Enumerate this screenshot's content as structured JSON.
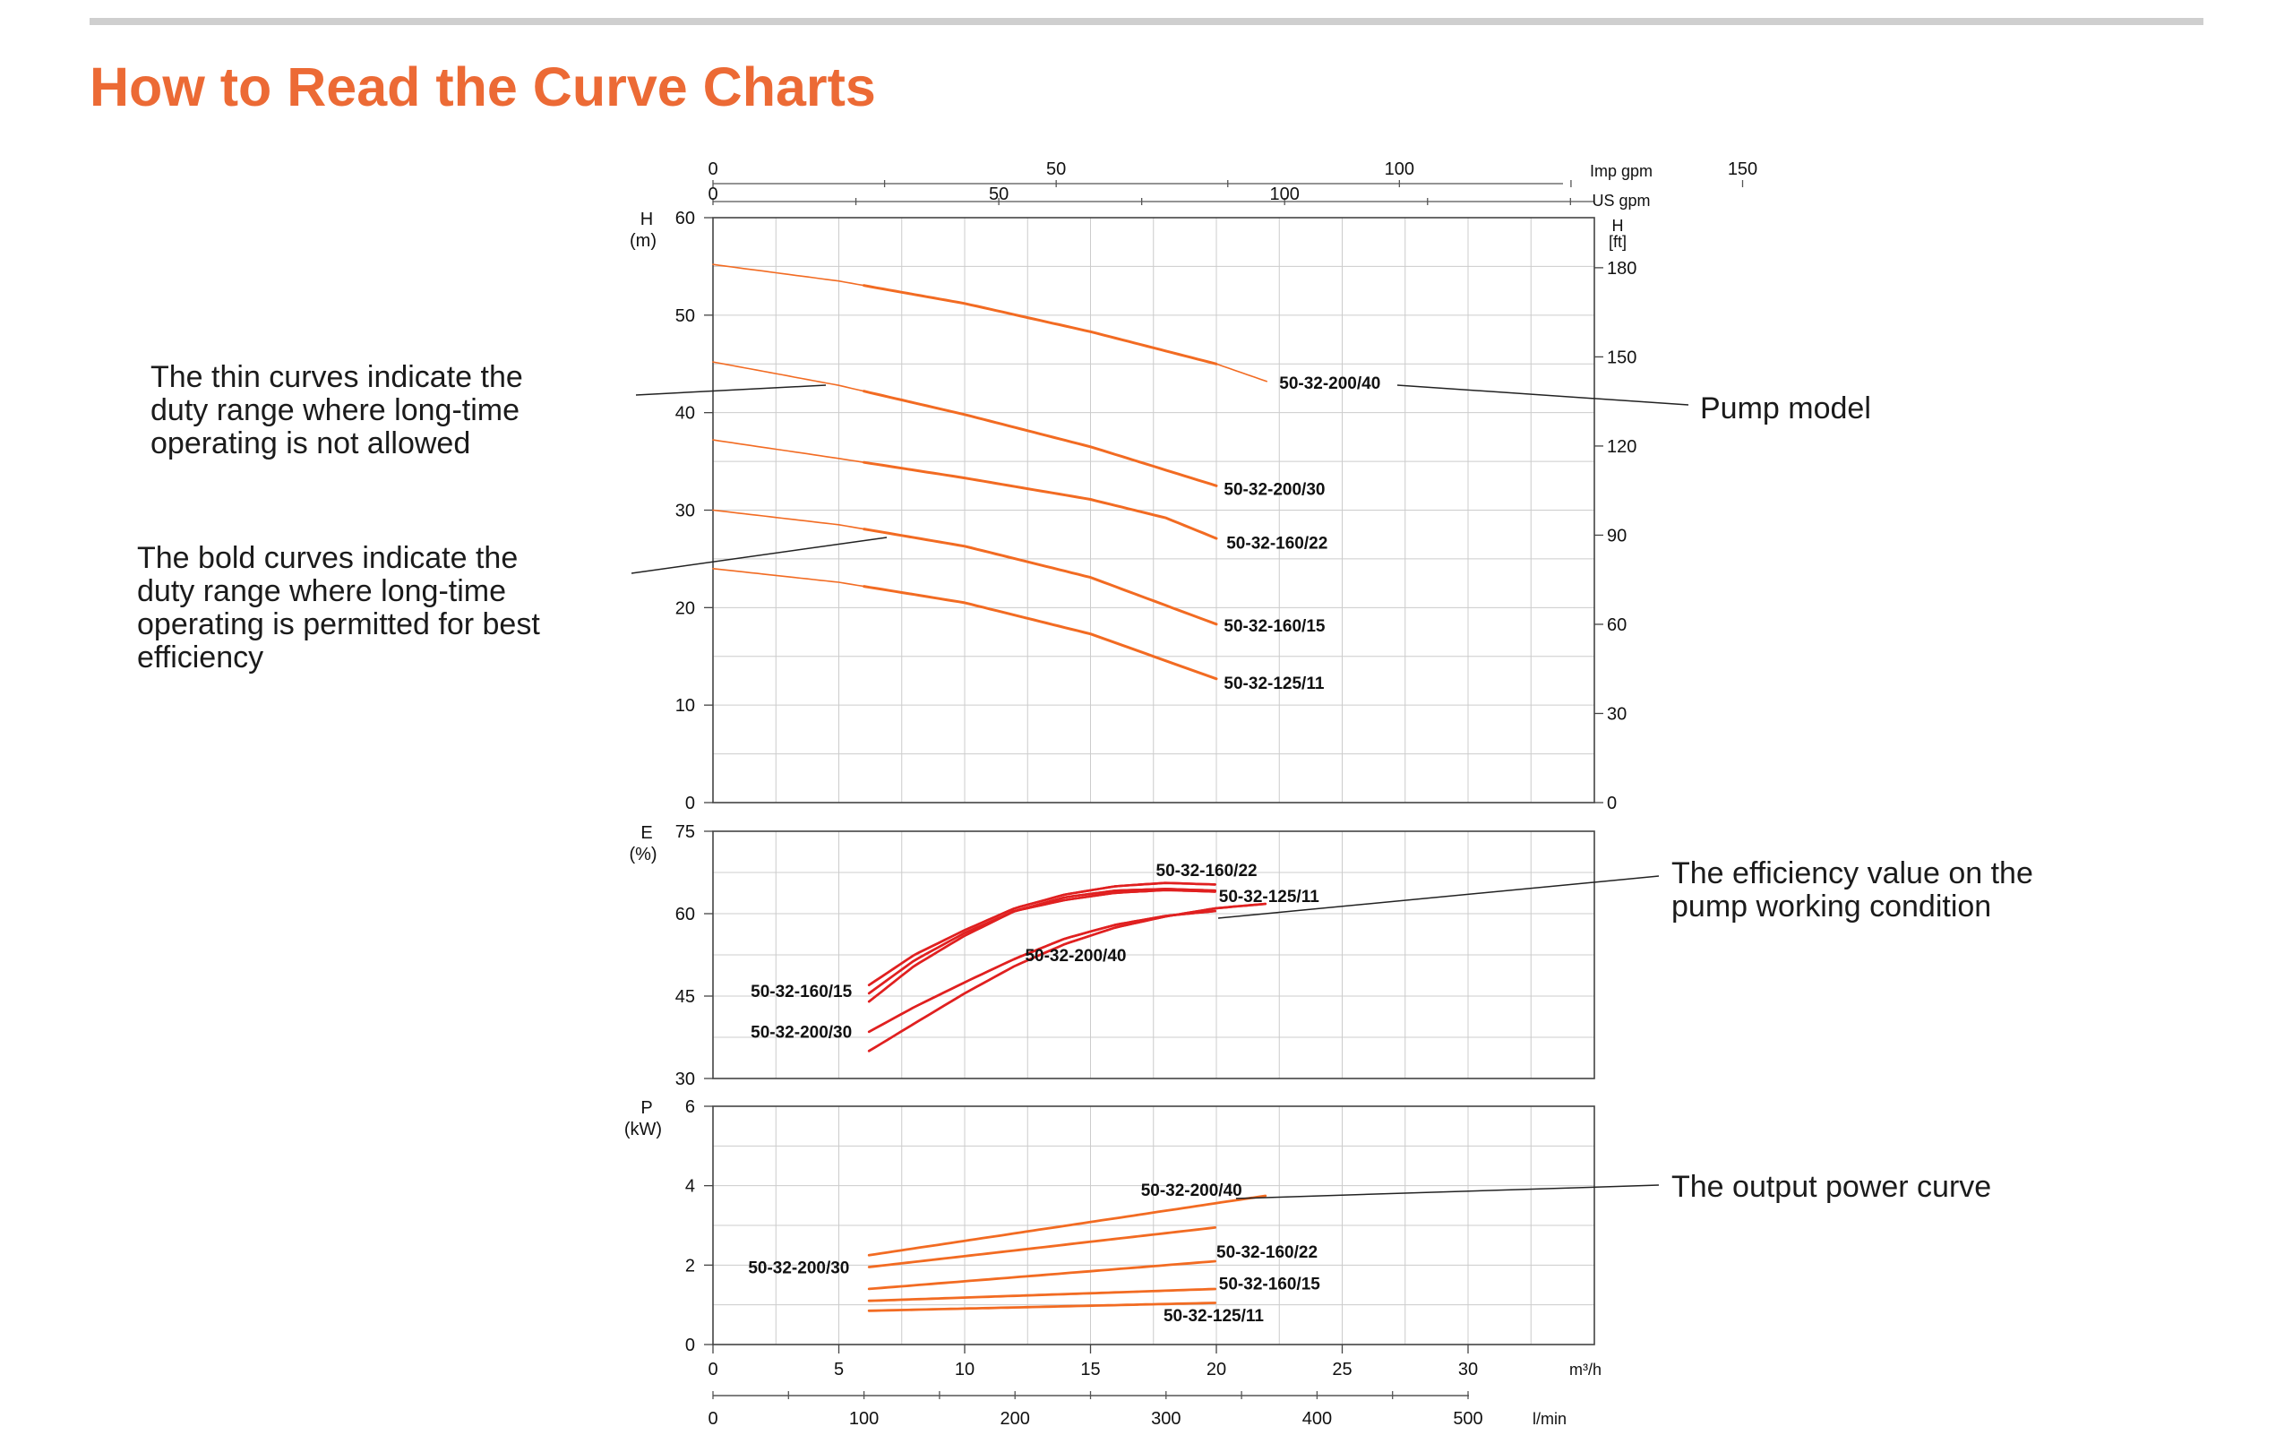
{
  "page": {
    "title": "How to Read the Curve Charts"
  },
  "annotations": {
    "thin": [
      "The thin curves indicate the",
      "duty range where long-time",
      "operating is not allowed"
    ],
    "bold": [
      "The bold curves indicate the",
      "duty range where long-time",
      "operating is permitted for best",
      "efficiency"
    ],
    "model": "Pump model",
    "efficiency": [
      "The efficiency value on the",
      "pump working condition"
    ],
    "power": "The output power curve"
  },
  "colors": {
    "accent": "#ec6a35",
    "curve": "#f26b22",
    "effcurve": "#e02020",
    "grid": "#cccccc"
  },
  "chart_data": [
    {
      "type": "line",
      "name": "head",
      "ylabel": [
        "H",
        "(m)"
      ],
      "ylim": [
        0,
        60
      ],
      "yticks": [
        0,
        10,
        20,
        30,
        40,
        50,
        60
      ],
      "right_axis": {
        "label": [
          "H",
          "[ft]"
        ],
        "ticks": [
          0,
          30,
          60,
          90,
          120,
          150,
          180
        ]
      },
      "top_axes": [
        {
          "unit": "Imp gpm",
          "ticks": [
            0,
            50,
            100,
            150
          ]
        },
        {
          "unit": "US gpm",
          "ticks": [
            0,
            50,
            100
          ]
        }
      ],
      "xlim": [
        0,
        35
      ],
      "series": [
        {
          "name": "50-32-200/40",
          "points": [
            [
              0,
              55.2
            ],
            [
              5,
              53.5
            ],
            [
              10,
              51.2
            ],
            [
              15,
              48.3
            ],
            [
              20,
              45
            ],
            [
              22,
              43.2
            ]
          ]
        },
        {
          "name": "50-32-200/30",
          "points": [
            [
              0,
              45.2
            ],
            [
              5,
              42.8
            ],
            [
              10,
              39.8
            ],
            [
              15,
              36.5
            ],
            [
              20,
              32.5
            ]
          ]
        },
        {
          "name": "50-32-160/22",
          "points": [
            [
              0,
              37.2
            ],
            [
              5,
              35.3
            ],
            [
              10,
              33.3
            ],
            [
              15,
              31.1
            ],
            [
              18,
              29.2
            ],
            [
              20,
              27.1
            ]
          ]
        },
        {
          "name": "50-32-160/15",
          "points": [
            [
              0,
              30
            ],
            [
              5,
              28.5
            ],
            [
              10,
              26.3
            ],
            [
              15,
              23.1
            ],
            [
              20,
              18.3
            ]
          ]
        },
        {
          "name": "50-32-125/11",
          "points": [
            [
              0,
              24
            ],
            [
              5,
              22.6
            ],
            [
              10,
              20.5
            ],
            [
              15,
              17.3
            ],
            [
              20,
              12.7
            ]
          ]
        }
      ],
      "bold_range": [
        6,
        20
      ]
    },
    {
      "type": "line",
      "name": "efficiency",
      "ylabel": [
        "E",
        "(%)"
      ],
      "ylim": [
        30,
        75
      ],
      "yticks": [
        30,
        45,
        60,
        75
      ],
      "xlim": [
        0,
        35
      ],
      "series": [
        {
          "name": "50-32-160/22",
          "points": [
            [
              6.2,
              47
            ],
            [
              8,
              52.5
            ],
            [
              10,
              57
            ],
            [
              12,
              61
            ],
            [
              14,
              63.5
            ],
            [
              16,
              65
            ],
            [
              18,
              65.6
            ],
            [
              20,
              65.3
            ]
          ]
        },
        {
          "name": "50-32-160/15",
          "points": [
            [
              6.2,
              45.5
            ],
            [
              8,
              51.5
            ],
            [
              10,
              56.5
            ],
            [
              12,
              60.5
            ],
            [
              14,
              62.5
            ],
            [
              16,
              63.8
            ],
            [
              18,
              64.3
            ],
            [
              20,
              64
            ]
          ]
        },
        {
          "name": "50-32-125/11",
          "points": [
            [
              6.2,
              44
            ],
            [
              8,
              50.5
            ],
            [
              10,
              56
            ],
            [
              12,
              60.5
            ],
            [
              14,
              63
            ],
            [
              16,
              64.2
            ],
            [
              18,
              64.5
            ],
            [
              20,
              64.2
            ]
          ]
        },
        {
          "name": "50-32-200/30",
          "points": [
            [
              6.2,
              38.5
            ],
            [
              8,
              43
            ],
            [
              10,
              47.5
            ],
            [
              12,
              51.8
            ],
            [
              14,
              55.5
            ],
            [
              16,
              58
            ],
            [
              18,
              59.6
            ],
            [
              20,
              60.5
            ]
          ]
        },
        {
          "name": "50-32-200/40",
          "points": [
            [
              6.2,
              35
            ],
            [
              8,
              40
            ],
            [
              10,
              45.5
            ],
            [
              12,
              50.5
            ],
            [
              14,
              54.5
            ],
            [
              16,
              57.5
            ],
            [
              18,
              59.5
            ],
            [
              20,
              61
            ],
            [
              22,
              61.8
            ]
          ]
        }
      ]
    },
    {
      "type": "line",
      "name": "power",
      "ylabel": [
        "P",
        "(kW)"
      ],
      "ylim": [
        0,
        6
      ],
      "yticks": [
        0,
        2,
        4,
        6
      ],
      "xlim": [
        0,
        35
      ],
      "xticks": [
        0,
        5,
        10,
        15,
        20,
        25,
        30
      ],
      "xlabel": "m³/h",
      "lmin_axis": {
        "unit": "l/min",
        "ticks": [
          0,
          100,
          200,
          300,
          400,
          500
        ]
      },
      "series": [
        {
          "name": "50-32-200/40",
          "points": [
            [
              6.2,
              2.25
            ],
            [
              22,
              3.75
            ]
          ]
        },
        {
          "name": "50-32-200/30",
          "points": [
            [
              6.2,
              1.95
            ],
            [
              20,
              2.95
            ]
          ]
        },
        {
          "name": "50-32-160/22",
          "points": [
            [
              6.2,
              1.4
            ],
            [
              20,
              2.1
            ]
          ]
        },
        {
          "name": "50-32-160/15",
          "points": [
            [
              6.2,
              1.1
            ],
            [
              20,
              1.4
            ]
          ]
        },
        {
          "name": "50-32-125/11",
          "points": [
            [
              6.2,
              0.85
            ],
            [
              20,
              1.05
            ]
          ]
        }
      ]
    }
  ]
}
